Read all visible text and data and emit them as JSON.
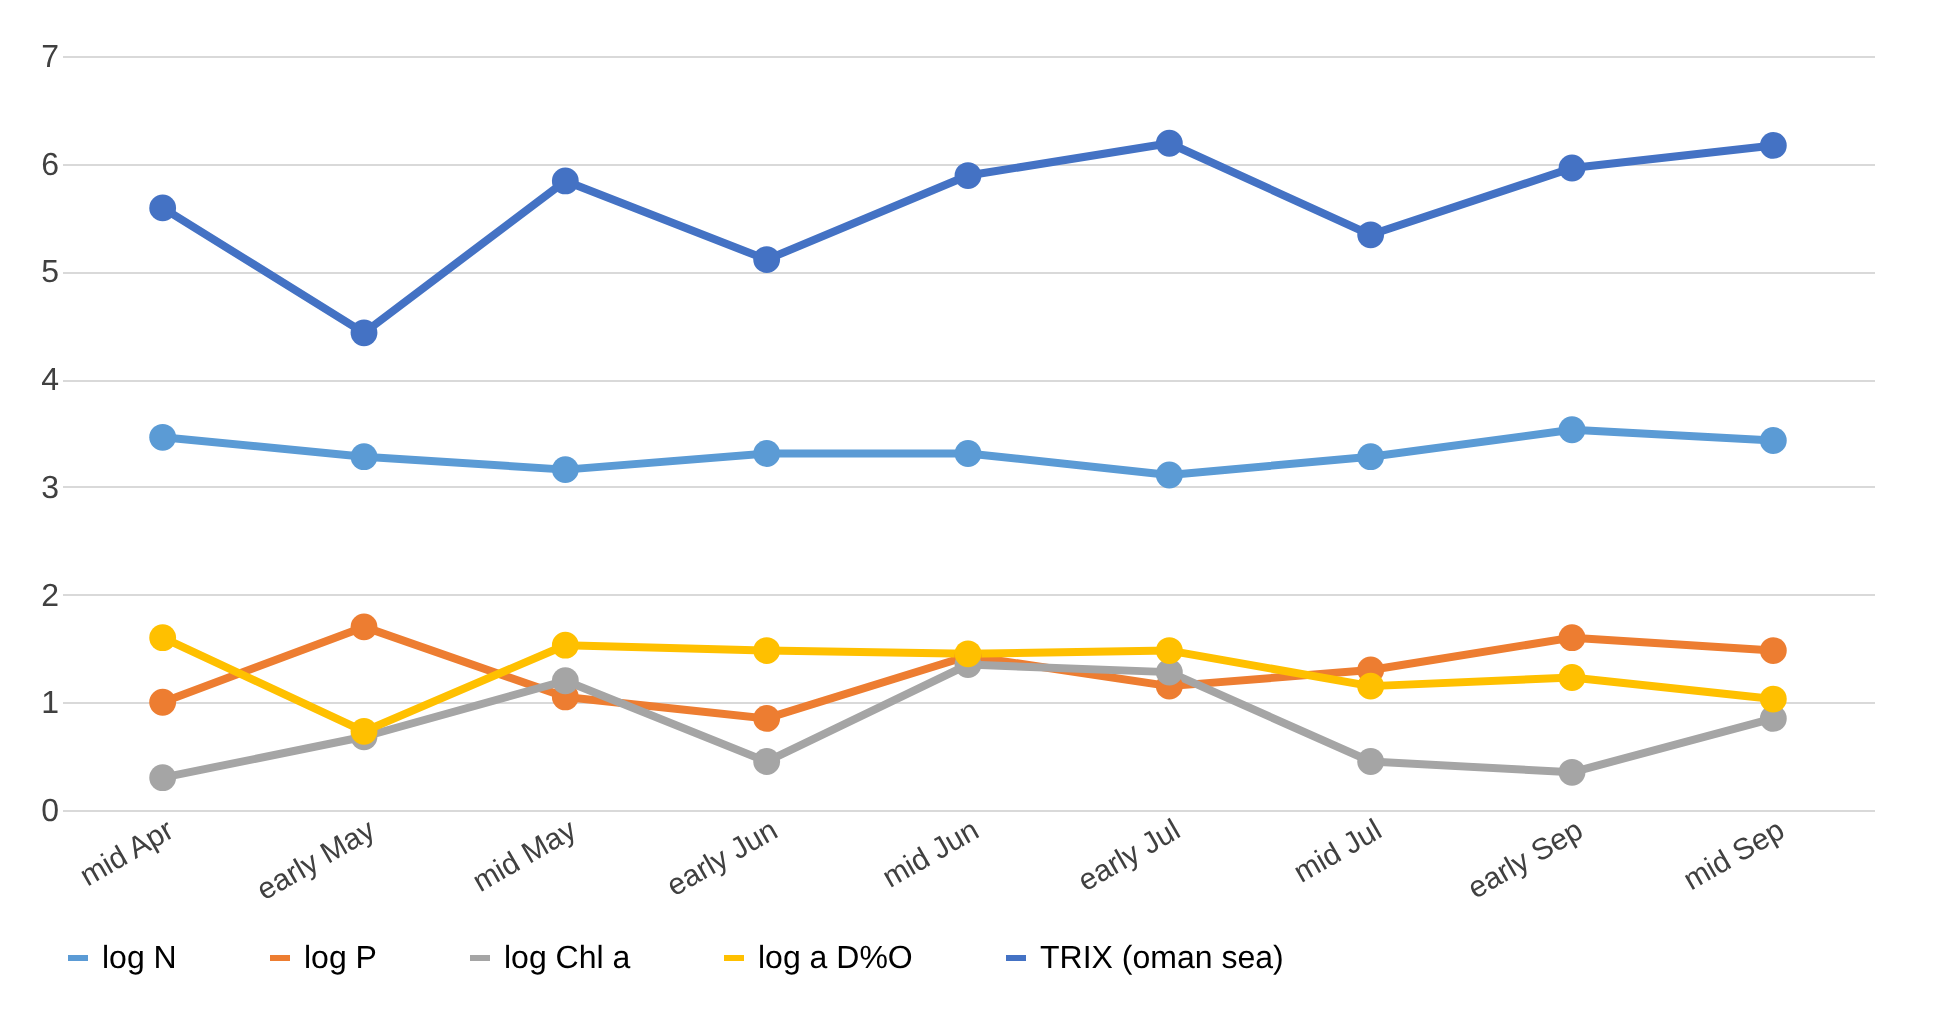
{
  "chart_data": {
    "type": "line",
    "categories": [
      "mid Apr",
      "early May",
      "mid May",
      "early Jun",
      "mid Jun",
      "early Jul",
      "mid Jul",
      "early Sep",
      "mid Sep"
    ],
    "series": [
      {
        "name": "log N",
        "color": "#5b9bd5",
        "values": [
          3.46,
          3.28,
          3.16,
          3.31,
          3.31,
          3.11,
          3.28,
          3.53,
          3.43
        ]
      },
      {
        "name": "log P",
        "color": "#ed7d31",
        "values": [
          1.0,
          1.7,
          1.05,
          0.85,
          1.43,
          1.15,
          1.3,
          1.6,
          1.48
        ]
      },
      {
        "name": "log Chl a",
        "color": "#a5a5a5",
        "values": [
          0.3,
          0.68,
          1.2,
          0.45,
          1.35,
          1.28,
          0.45,
          0.35,
          0.85
        ]
      },
      {
        "name": "log a D%O",
        "color": "#ffc000",
        "values": [
          1.6,
          0.73,
          1.53,
          1.48,
          1.45,
          1.48,
          1.15,
          1.23,
          1.03
        ]
      },
      {
        "name": "TRIX (oman sea)",
        "color": "#4472c4",
        "values": [
          5.59,
          4.43,
          5.84,
          5.11,
          5.89,
          6.19,
          5.34,
          5.96,
          6.17
        ]
      }
    ],
    "ylim": [
      0,
      7
    ],
    "yticks": [
      0,
      1,
      2,
      3,
      4,
      5,
      6,
      7
    ],
    "grid": "y",
    "legend": "bottom",
    "marker": "circle",
    "line_style": "solid"
  }
}
